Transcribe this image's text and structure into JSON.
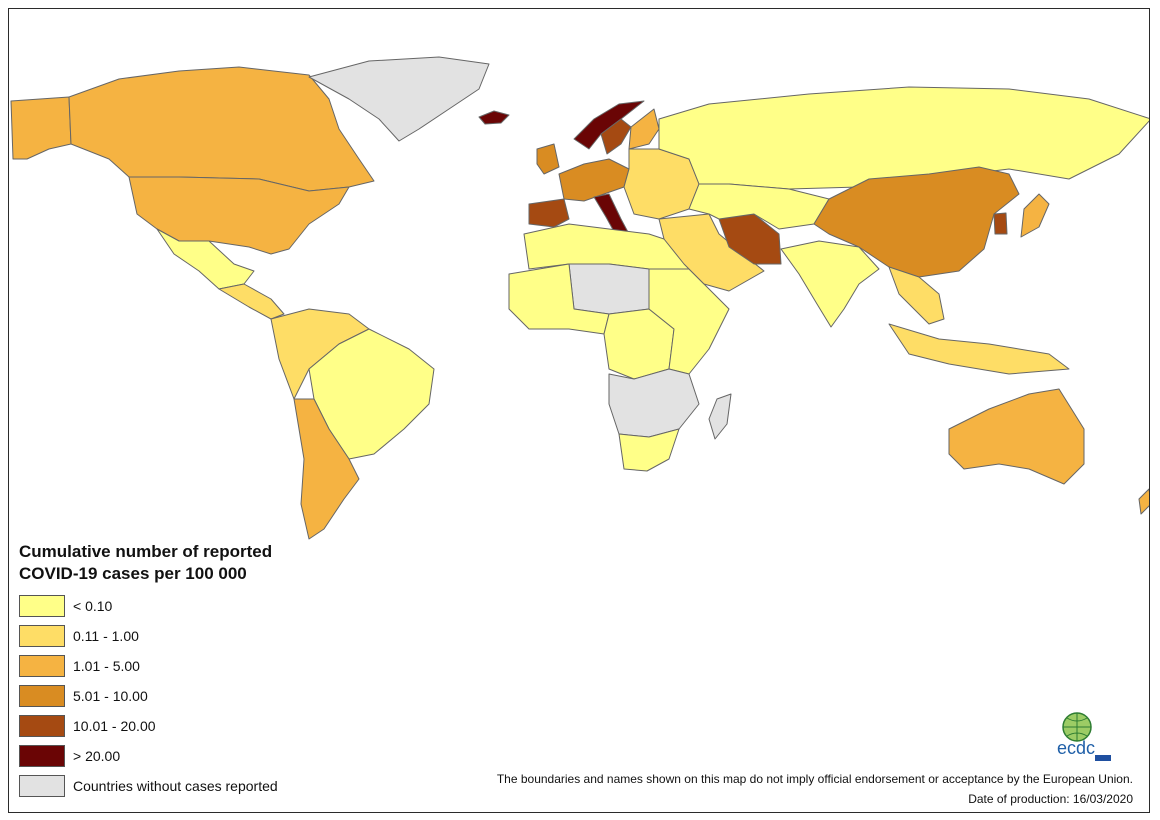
{
  "legend": {
    "title_line1": "Cumulative number of reported",
    "title_line2": "COVID-19 cases per 100 000",
    "classes": [
      {
        "label": "< 0.10",
        "color": "#FFFF88"
      },
      {
        "label": "0.11 - 1.00",
        "color": "#FEDD66"
      },
      {
        "label": "1.01 - 5.00",
        "color": "#F5B342"
      },
      {
        "label": "5.01 - 10.00",
        "color": "#D98C22"
      },
      {
        "label": "10.01 - 20.00",
        "color": "#A54A12"
      },
      {
        "label": "> 20.00",
        "color": "#6A0505"
      },
      {
        "label": "Countries without cases reported",
        "color": "#E2E2E2"
      }
    ]
  },
  "footer": {
    "disclaimer": "The boundaries and names shown on this map do not imply official endorsement or acceptance by the European Union.",
    "date": "Date of production: 16/03/2020"
  },
  "logo_text": "ecdc",
  "regions": [
    {
      "name": "alaska",
      "class": 2
    },
    {
      "name": "canada",
      "class": 2
    },
    {
      "name": "usa",
      "class": 2
    },
    {
      "name": "mexico",
      "class": 0
    },
    {
      "name": "central-america",
      "class": 1
    },
    {
      "name": "greenland",
      "class": 6
    },
    {
      "name": "south-america-north",
      "class": 1
    },
    {
      "name": "brazil",
      "class": 0
    },
    {
      "name": "southern-cone",
      "class": 2
    },
    {
      "name": "iceland",
      "class": 5
    },
    {
      "name": "norway",
      "class": 5
    },
    {
      "name": "sweden",
      "class": 4
    },
    {
      "name": "finland",
      "class": 2
    },
    {
      "name": "uk",
      "class": 3
    },
    {
      "name": "western-europe",
      "class": 3
    },
    {
      "name": "iberia",
      "class": 4
    },
    {
      "name": "italy",
      "class": 5
    },
    {
      "name": "eastern-europe",
      "class": 1
    },
    {
      "name": "russia",
      "class": 0
    },
    {
      "name": "north-africa",
      "class": 0
    },
    {
      "name": "sahara",
      "class": 6
    },
    {
      "name": "west-africa",
      "class": 0
    },
    {
      "name": "central-africa",
      "class": 0
    },
    {
      "name": "east-africa",
      "class": 0
    },
    {
      "name": "southern-africa",
      "class": 6
    },
    {
      "name": "south-africa",
      "class": 0
    },
    {
      "name": "madagascar",
      "class": 6
    },
    {
      "name": "middle-east",
      "class": 1
    },
    {
      "name": "iran",
      "class": 4
    },
    {
      "name": "central-asia",
      "class": 0
    },
    {
      "name": "india",
      "class": 0
    },
    {
      "name": "china",
      "class": 3
    },
    {
      "name": "korea",
      "class": 4
    },
    {
      "name": "japan",
      "class": 2
    },
    {
      "name": "southeast-asia",
      "class": 1
    },
    {
      "name": "indonesia",
      "class": 1
    },
    {
      "name": "australia",
      "class": 2
    },
    {
      "name": "new-zealand",
      "class": 2
    }
  ]
}
